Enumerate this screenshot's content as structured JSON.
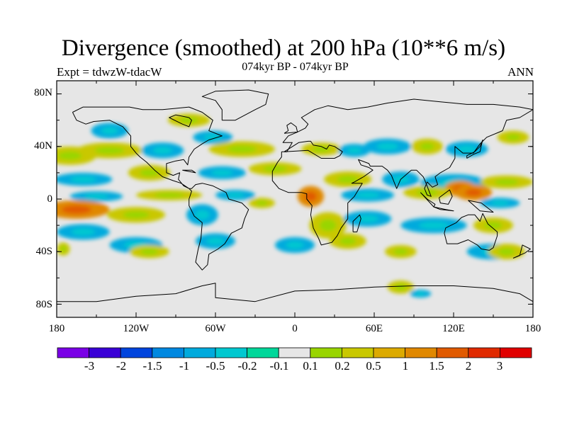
{
  "title": "Divergence (smoothed) at 200 hPa (10**6 m/s)",
  "experiment": "Expt = tdwzW-tdacW",
  "period": "074kyr BP - 074kyr BP",
  "season": "ANN",
  "lat_labels": [
    "80N",
    "40N",
    "0",
    "40S",
    "80S"
  ],
  "lon_labels": [
    "180",
    "120W",
    "60W",
    "0",
    "60E",
    "120E",
    "180"
  ],
  "colorbar": {
    "labels": [
      "-3",
      "-2",
      "-1.5",
      "-1",
      "-0.5",
      "-0.2",
      "-0.1",
      "0.1",
      "0.2",
      "0.5",
      "1",
      "1.5",
      "2",
      "3"
    ],
    "colors": [
      "#7a00e6",
      "#3a00d6",
      "#0044dd",
      "#0088e0",
      "#00aadd",
      "#00c8d0",
      "#00d79a",
      "#e6e6e6",
      "#99d500",
      "#c9c800",
      "#dcaa00",
      "#e08800",
      "#e05a00",
      "#e02a00",
      "#e00000"
    ]
  },
  "map": {
    "background": "#e6e6e6",
    "blobs": [
      {
        "lon": -170,
        "lat": 33,
        "rx": 20,
        "ry": 7,
        "level": "pos"
      },
      {
        "lon": -140,
        "lat": 37,
        "rx": 25,
        "ry": 6,
        "level": "pos"
      },
      {
        "lon": -100,
        "lat": 37,
        "rx": 16,
        "ry": 6,
        "level": "neg"
      },
      {
        "lon": -140,
        "lat": 52,
        "rx": 14,
        "ry": 6,
        "level": "neg"
      },
      {
        "lon": -80,
        "lat": 60,
        "rx": 16,
        "ry": 5,
        "level": "pos"
      },
      {
        "lon": -62,
        "lat": 47,
        "rx": 15,
        "ry": 5,
        "level": "neg"
      },
      {
        "lon": -40,
        "lat": 38,
        "rx": 25,
        "ry": 6,
        "level": "pos"
      },
      {
        "lon": 20,
        "lat": 38,
        "rx": 15,
        "ry": 5,
        "level": "pos"
      },
      {
        "lon": 45,
        "lat": 37,
        "rx": 12,
        "ry": 5,
        "level": "neg"
      },
      {
        "lon": 70,
        "lat": 40,
        "rx": 18,
        "ry": 6,
        "level": "neg"
      },
      {
        "lon": 100,
        "lat": 40,
        "rx": 12,
        "ry": 6,
        "level": "pos"
      },
      {
        "lon": 130,
        "lat": 38,
        "rx": 16,
        "ry": 6,
        "level": "neg"
      },
      {
        "lon": 165,
        "lat": 47,
        "rx": 12,
        "ry": 5,
        "level": "pos"
      },
      {
        "lon": -160,
        "lat": 15,
        "rx": 22,
        "ry": 5,
        "level": "neg"
      },
      {
        "lon": -110,
        "lat": 20,
        "rx": 16,
        "ry": 6,
        "level": "pos"
      },
      {
        "lon": -55,
        "lat": 20,
        "rx": 18,
        "ry": 5,
        "level": "neg"
      },
      {
        "lon": -15,
        "lat": 23,
        "rx": 20,
        "ry": 5,
        "level": "pos"
      },
      {
        "lon": 40,
        "lat": 15,
        "rx": 18,
        "ry": 6,
        "level": "pos"
      },
      {
        "lon": 80,
        "lat": 15,
        "rx": 14,
        "ry": 6,
        "level": "neg"
      },
      {
        "lon": 120,
        "lat": 12,
        "rx": 25,
        "ry": 7,
        "level": "neg"
      },
      {
        "lon": 160,
        "lat": 13,
        "rx": 20,
        "ry": 5,
        "level": "pos"
      },
      {
        "lon": 125,
        "lat": 8,
        "rx": 12,
        "ry": 6,
        "level": "strong"
      },
      {
        "lon": 135,
        "lat": 5,
        "rx": 14,
        "ry": 6,
        "level": "strong"
      },
      {
        "lon": -150,
        "lat": 2,
        "rx": 20,
        "ry": 4,
        "level": "neg"
      },
      {
        "lon": -95,
        "lat": 3,
        "rx": 25,
        "ry": 4,
        "level": "pos"
      },
      {
        "lon": -45,
        "lat": 3,
        "rx": 15,
        "ry": 4,
        "level": "neg"
      },
      {
        "lon": 12,
        "lat": 2,
        "rx": 10,
        "ry": 8,
        "level": "strong"
      },
      {
        "lon": 55,
        "lat": 3,
        "rx": 20,
        "ry": 5,
        "level": "neg"
      },
      {
        "lon": 100,
        "lat": 5,
        "rx": 18,
        "ry": 5,
        "level": "pos"
      },
      {
        "lon": 155,
        "lat": -3,
        "rx": 15,
        "ry": 4,
        "level": "neg"
      },
      {
        "lon": -165,
        "lat": -8,
        "rx": 25,
        "ry": 7,
        "level": "strong"
      },
      {
        "lon": -120,
        "lat": -12,
        "rx": 22,
        "ry": 6,
        "level": "pos"
      },
      {
        "lon": -70,
        "lat": -12,
        "rx": 12,
        "ry": 8,
        "level": "neg"
      },
      {
        "lon": -25,
        "lat": -3,
        "rx": 10,
        "ry": 4,
        "level": "pos"
      },
      {
        "lon": 25,
        "lat": -20,
        "rx": 14,
        "ry": 10,
        "level": "pos"
      },
      {
        "lon": 55,
        "lat": -15,
        "rx": 18,
        "ry": 6,
        "level": "neg"
      },
      {
        "lon": 105,
        "lat": -20,
        "rx": 25,
        "ry": 6,
        "level": "neg"
      },
      {
        "lon": 150,
        "lat": -20,
        "rx": 15,
        "ry": 6,
        "level": "pos"
      },
      {
        "lon": -160,
        "lat": -25,
        "rx": 20,
        "ry": 6,
        "level": "neg"
      },
      {
        "lon": -120,
        "lat": -35,
        "rx": 20,
        "ry": 6,
        "level": "neg"
      },
      {
        "lon": -60,
        "lat": -32,
        "rx": 15,
        "ry": 6,
        "level": "neg"
      },
      {
        "lon": 0,
        "lat": -35,
        "rx": 15,
        "ry": 6,
        "level": "neg"
      },
      {
        "lon": 40,
        "lat": -32,
        "rx": 14,
        "ry": 6,
        "level": "pos"
      },
      {
        "lon": 80,
        "lat": -40,
        "rx": 12,
        "ry": 5,
        "level": "pos"
      },
      {
        "lon": 150,
        "lat": -40,
        "rx": 20,
        "ry": 6,
        "level": "neg"
      },
      {
        "lon": 160,
        "lat": -40,
        "rx": 14,
        "ry": 6,
        "level": "pos"
      },
      {
        "lon": -175,
        "lat": -38,
        "rx": 5,
        "ry": 5,
        "level": "pos"
      },
      {
        "lon": -110,
        "lat": -40,
        "rx": 15,
        "ry": 5,
        "level": "pos"
      },
      {
        "lon": 80,
        "lat": -67,
        "rx": 10,
        "ry": 5,
        "level": "pos"
      },
      {
        "lon": 95,
        "lat": -72,
        "rx": 8,
        "ry": 3,
        "level": "neg"
      }
    ],
    "coastlines": [
      [
        [
          -168,
          66
        ],
        [
          -160,
          70
        ],
        [
          -140,
          70
        ],
        [
          -125,
          70
        ],
        [
          -115,
          68
        ],
        [
          -100,
          68
        ],
        [
          -90,
          69
        ],
        [
          -80,
          70
        ],
        [
          -70,
          66
        ],
        [
          -62,
          60
        ],
        [
          -65,
          52
        ],
        [
          -55,
          48
        ],
        [
          -65,
          45
        ],
        [
          -70,
          42
        ],
        [
          -76,
          38
        ],
        [
          -80,
          32
        ],
        [
          -81,
          26
        ],
        [
          -84,
          30
        ],
        [
          -90,
          29
        ],
        [
          -97,
          27
        ],
        [
          -97,
          20
        ],
        [
          -92,
          18
        ],
        [
          -87,
          20
        ],
        [
          -88,
          15
        ],
        [
          -84,
          10
        ],
        [
          -80,
          8
        ],
        [
          -78,
          8
        ],
        [
          -75,
          11
        ],
        [
          -70,
          12
        ],
        [
          -62,
          10
        ],
        [
          -52,
          5
        ],
        [
          -50,
          0
        ],
        [
          -40,
          -3
        ],
        [
          -35,
          -8
        ],
        [
          -38,
          -15
        ],
        [
          -40,
          -22
        ],
        [
          -48,
          -26
        ],
        [
          -53,
          -34
        ],
        [
          -58,
          -38
        ],
        [
          -65,
          -42
        ],
        [
          -66,
          -50
        ],
        [
          -70,
          -54
        ],
        [
          -75,
          -48
        ],
        [
          -73,
          -38
        ],
        [
          -71,
          -30
        ],
        [
          -70,
          -18
        ],
        [
          -76,
          -13
        ],
        [
          -80,
          -5
        ],
        [
          -80,
          0
        ],
        [
          -78,
          6
        ],
        [
          -80,
          8
        ],
        [
          -86,
          12
        ],
        [
          -92,
          14
        ],
        [
          -100,
          17
        ],
        [
          -106,
          22
        ],
        [
          -112,
          28
        ],
        [
          -117,
          32
        ],
        [
          -120,
          35
        ],
        [
          -124,
          40
        ],
        [
          -124,
          48
        ],
        [
          -130,
          55
        ],
        [
          -140,
          60
        ],
        [
          -152,
          59
        ],
        [
          -158,
          57
        ],
        [
          -165,
          60
        ],
        [
          -168,
          66
        ]
      ],
      [
        [
          -10,
          36
        ],
        [
          -6,
          36
        ],
        [
          -2,
          43
        ],
        [
          -9,
          43
        ],
        [
          -5,
          48
        ],
        [
          2,
          51
        ],
        [
          8,
          54
        ],
        [
          10,
          57
        ],
        [
          5,
          62
        ],
        [
          15,
          68
        ],
        [
          25,
          71
        ],
        [
          40,
          68
        ],
        [
          55,
          70
        ],
        [
          70,
          73
        ],
        [
          90,
          76
        ],
        [
          110,
          74
        ],
        [
          130,
          72
        ],
        [
          150,
          72
        ],
        [
          170,
          70
        ],
        [
          180,
          68
        ],
        [
          170,
          62
        ],
        [
          160,
          60
        ],
        [
          157,
          52
        ],
        [
          145,
          47
        ],
        [
          140,
          42
        ],
        [
          135,
          35
        ],
        [
          127,
          35
        ],
        [
          121,
          40
        ],
        [
          121,
          31
        ],
        [
          117,
          24
        ],
        [
          110,
          20
        ],
        [
          106,
          17
        ],
        [
          108,
          11
        ],
        [
          104,
          9
        ],
        [
          100,
          13
        ],
        [
          98,
          8
        ],
        [
          100,
          3
        ],
        [
          103,
          2
        ],
        [
          98,
          15
        ],
        [
          97,
          17
        ],
        [
          92,
          22
        ],
        [
          88,
          22
        ],
        [
          80,
          15
        ],
        [
          77,
          8
        ],
        [
          73,
          18
        ],
        [
          70,
          22
        ],
        [
          66,
          25
        ],
        [
          57,
          25
        ],
        [
          56,
          27
        ],
        [
          48,
          30
        ],
        [
          50,
          26
        ],
        [
          56,
          24
        ],
        [
          59,
          22
        ],
        [
          52,
          17
        ],
        [
          45,
          13
        ],
        [
          43,
          12
        ],
        [
          51,
          12
        ],
        [
          45,
          2
        ],
        [
          40,
          -3
        ],
        [
          40,
          -15
        ],
        [
          35,
          -22
        ],
        [
          32,
          -28
        ],
        [
          28,
          -33
        ],
        [
          20,
          -35
        ],
        [
          18,
          -30
        ],
        [
          14,
          -22
        ],
        [
          12,
          -12
        ],
        [
          13,
          -5
        ],
        [
          9,
          0
        ],
        [
          9,
          4
        ],
        [
          5,
          5
        ],
        [
          -5,
          5
        ],
        [
          -12,
          8
        ],
        [
          -17,
          14
        ],
        [
          -17,
          21
        ],
        [
          -13,
          28
        ],
        [
          -10,
          32
        ],
        [
          -10,
          36
        ]
      ],
      [
        [
          -8,
          36
        ],
        [
          10,
          37
        ],
        [
          20,
          31
        ],
        [
          30,
          31
        ],
        [
          34,
          33
        ],
        [
          36,
          36
        ],
        [
          30,
          40
        ],
        [
          26,
          41
        ],
        [
          24,
          38
        ],
        [
          20,
          40
        ],
        [
          14,
          41
        ],
        [
          12,
          44
        ],
        [
          10,
          44
        ],
        [
          3,
          43
        ],
        [
          -8,
          36
        ]
      ],
      [
        [
          114,
          -22
        ],
        [
          113,
          -26
        ],
        [
          115,
          -34
        ],
        [
          123,
          -34
        ],
        [
          131,
          -31
        ],
        [
          138,
          -35
        ],
        [
          141,
          -38
        ],
        [
          147,
          -39
        ],
        [
          150,
          -37
        ],
        [
          153,
          -28
        ],
        [
          153,
          -25
        ],
        [
          146,
          -19
        ],
        [
          142,
          -11
        ],
        [
          140,
          -17
        ],
        [
          136,
          -12
        ],
        [
          131,
          -12
        ],
        [
          126,
          -14
        ],
        [
          122,
          -18
        ],
        [
          114,
          -22
        ]
      ],
      [
        [
          44,
          -25
        ],
        [
          47,
          -25
        ],
        [
          50,
          -15
        ],
        [
          49,
          -12
        ],
        [
          44,
          -17
        ],
        [
          44,
          -25
        ]
      ],
      [
        [
          -180,
          -78
        ],
        [
          -150,
          -78
        ],
        [
          -120,
          -74
        ],
        [
          -90,
          -72
        ],
        [
          -70,
          -66
        ],
        [
          -60,
          -64
        ],
        [
          -60,
          -75
        ],
        [
          -30,
          -78
        ],
        [
          0,
          -70
        ],
        [
          30,
          -69
        ],
        [
          60,
          -67
        ],
        [
          90,
          -66
        ],
        [
          120,
          -66
        ],
        [
          150,
          -68
        ],
        [
          170,
          -72
        ],
        [
          180,
          -78
        ]
      ],
      [
        [
          -55,
          60
        ],
        [
          -45,
          60
        ],
        [
          -30,
          68
        ],
        [
          -22,
          72
        ],
        [
          -20,
          80
        ],
        [
          -35,
          83
        ],
        [
          -60,
          82
        ],
        [
          -70,
          78
        ],
        [
          -60,
          75
        ],
        [
          -55,
          68
        ],
        [
          -55,
          60
        ]
      ],
      [
        [
          -8,
          50
        ],
        [
          2,
          51
        ],
        [
          1,
          55
        ],
        [
          -3,
          58
        ],
        [
          -6,
          56
        ],
        [
          -5,
          52
        ],
        [
          -8,
          50
        ]
      ],
      [
        [
          130,
          31
        ],
        [
          135,
          34
        ],
        [
          140,
          36
        ],
        [
          141,
          41
        ],
        [
          142,
          45
        ],
        [
          140,
          40
        ],
        [
          136,
          36
        ],
        [
          130,
          33
        ],
        [
          130,
          31
        ]
      ],
      [
        [
          95,
          5
        ],
        [
          105,
          -6
        ],
        [
          106,
          -4
        ],
        [
          100,
          0
        ],
        [
          95,
          5
        ]
      ],
      [
        [
          105,
          -6
        ],
        [
          114,
          -8
        ],
        [
          120,
          -9
        ],
        [
          110,
          -8
        ],
        [
          105,
          -6
        ]
      ],
      [
        [
          109,
          1
        ],
        [
          117,
          7
        ],
        [
          119,
          2
        ],
        [
          116,
          -4
        ],
        [
          110,
          -3
        ],
        [
          109,
          1
        ]
      ],
      [
        [
          131,
          -1
        ],
        [
          141,
          -3
        ],
        [
          150,
          -10
        ],
        [
          140,
          -9
        ],
        [
          131,
          -1
        ]
      ],
      [
        [
          -85,
          22
        ],
        [
          -75,
          20
        ],
        [
          -78,
          22
        ],
        [
          -85,
          22
        ]
      ],
      [
        [
          165,
          -45
        ],
        [
          174,
          -41
        ],
        [
          178,
          -38
        ],
        [
          172,
          -35
        ],
        [
          170,
          -43
        ],
        [
          165,
          -45
        ]
      ],
      [
        [
          -80,
          62
        ],
        [
          -90,
          64
        ],
        [
          -95,
          62
        ],
        [
          -85,
          57
        ],
        [
          -80,
          55
        ],
        [
          -78,
          60
        ],
        [
          -80,
          62
        ]
      ]
    ]
  }
}
